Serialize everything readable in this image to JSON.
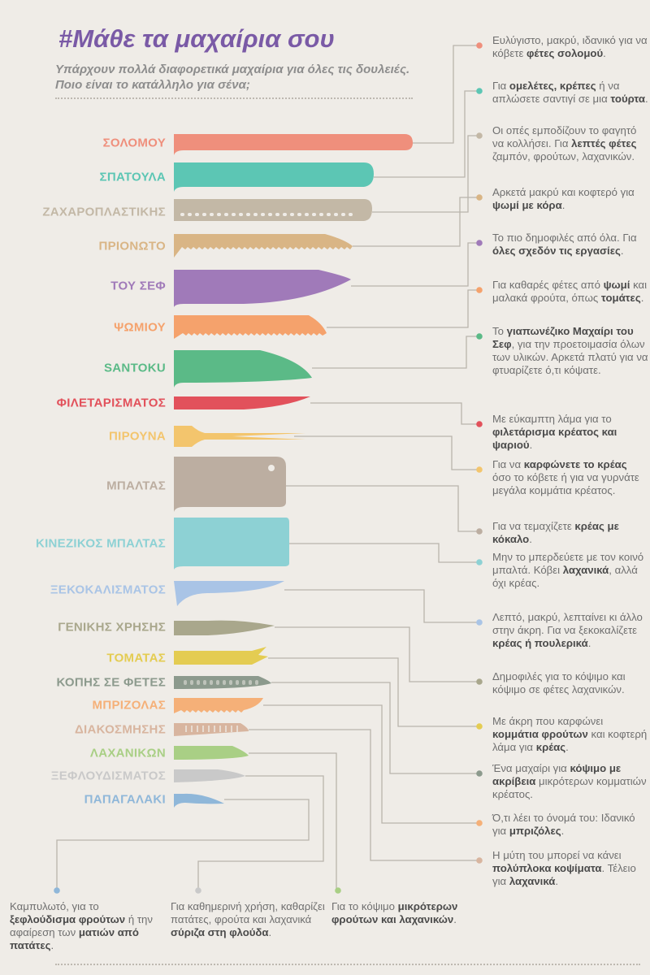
{
  "title": "#Μάθε τα μαχαίρια σου",
  "subtitle": "Υπάρχουν πολλά διαφορετικά μαχαίρια για όλες τις δουλειές. Ποιο είναι το κατάλληλο για σένα;",
  "knives": [
    {
      "name": "ΣΟΛΟΜΟΥ",
      "color": "#ef8f7c",
      "icon": "salmon-knife-icon"
    },
    {
      "name": "ΣΠΑΤΟΥΛΑ",
      "color": "#5cc6b4",
      "icon": "spatula-knife-icon"
    },
    {
      "name": "ΖΑΧΑΡΟΠΛΑΣΤΙΚΗΣ",
      "color": "#c3b8a6",
      "icon": "pastry-knife-icon"
    },
    {
      "name": "ΠΡΙΟΝΩΤΟ",
      "color": "#d9b585",
      "icon": "serrated-knife-icon"
    },
    {
      "name": "ΤΟΥ ΣΕΦ",
      "color": "#a07ab9",
      "icon": "chef-knife-icon"
    },
    {
      "name": "ΨΩΜΙΟΥ",
      "color": "#f5a26c",
      "icon": "bread-knife-icon"
    },
    {
      "name": "SANTOKU",
      "color": "#5bba87",
      "icon": "santoku-knife-icon"
    },
    {
      "name": "ΦΙΛΕΤΑΡΙΣΜΑΤΟΣ",
      "color": "#e2515b",
      "icon": "fillet-knife-icon"
    },
    {
      "name": "ΠΙΡΟΥΝΑ",
      "color": "#f3c56d",
      "icon": "carving-fork-icon"
    },
    {
      "name": "ΜΠΑΛΤΑΣ",
      "color": "#bcaea1",
      "icon": "cleaver-icon"
    },
    {
      "name": "ΚΙΝΕΖΙΚΟΣ ΜΠΑΛΤΑΣ",
      "color": "#8dd1d4",
      "icon": "chinese-cleaver-icon"
    },
    {
      "name": "ΞΕΚΟΚΑΛΙΣΜΑΤΟΣ",
      "color": "#a9c4e6",
      "icon": "boning-knife-icon"
    },
    {
      "name": "ΓΕΝΙΚΗΣ ΧΡΗΣΗΣ",
      "color": "#a9a78c",
      "icon": "utility-knife-icon"
    },
    {
      "name": "ΤΟΜΑΤΑΣ",
      "color": "#e4cc52",
      "icon": "tomato-knife-icon"
    },
    {
      "name": "ΚΟΠΗΣ ΣΕ ΦΕΤΕΣ",
      "color": "#8c9a8d",
      "icon": "slicing-knife-icon"
    },
    {
      "name": "ΜΠΡΙΖΟΛΑΣ",
      "color": "#f5b078",
      "icon": "steak-knife-icon"
    },
    {
      "name": "ΔΙΑΚΟΣΜΗΣΗΣ",
      "color": "#d8b59f",
      "icon": "decorating-knife-icon"
    },
    {
      "name": "ΛΑΧΑΝΙΚΩΝ",
      "color": "#a9cf85",
      "icon": "vegetable-knife-icon"
    },
    {
      "name": "ΞΕΦΛΟΥΔΙΣΜΑΤΟΣ",
      "color": "#c9c9c9",
      "icon": "peeling-knife-icon"
    },
    {
      "name": "ΠΑΠΑΓΑΛΑΚΙ",
      "color": "#8fb7d9",
      "icon": "bird-beak-knife-icon"
    }
  ],
  "descriptions": [
    {
      "parts": [
        "Ευλύγιστο, μακρύ, ιδανικό για να κόβετε ",
        "φέτες σολομού",
        "."
      ],
      "dot": "#ef8f7c"
    },
    {
      "parts": [
        "Για ",
        "ομελέτες, κρέπες",
        " ή να απλώσετε σαντιγί σε μια ",
        "τούρτα",
        "."
      ],
      "dot": "#5cc6b4"
    },
    {
      "parts": [
        "Οι οπές εμποδίζουν το φαγητό να κολλήσει. Για ",
        "λεπτές φέτες",
        " ζαμπόν, φρούτων, λαχανικών."
      ],
      "dot": "#c3b8a6"
    },
    {
      "parts": [
        "Αρκετά μακρύ και κοφτερό για ",
        "ψωμί με κόρα",
        "."
      ],
      "dot": "#d9b585"
    },
    {
      "parts": [
        "Το πιο δημοφιλές από όλα. Για ",
        "όλες σχεδόν τις εργασίες",
        "."
      ],
      "dot": "#a07ab9"
    },
    {
      "parts": [
        "Για καθαρές φέτες από ",
        "ψωμί",
        " και μαλακά φρούτα, όπως ",
        "τομάτες",
        "."
      ],
      "dot": "#f5a26c"
    },
    {
      "parts": [
        "Το ",
        "γιαπωνέζικο Μαχαίρι του Σεφ",
        ", για την προετοιμασία όλων των υλικών. Αρκετά πλατύ για να φτυαρίζετε ό,τι κόψατε."
      ],
      "dot": "#5bba87"
    },
    {
      "parts": [
        "Με εύκαμπτη λάμα για το ",
        "φιλετάρισμα κρέατος και ψαριού",
        "."
      ],
      "dot": "#e2515b"
    },
    {
      "parts": [
        "Για να ",
        "καρφώνετε το κρέας",
        " όσο το κόβετε ή για να γυρνάτε μεγάλα κομμάτια κρέατος."
      ],
      "dot": "#f3c56d"
    },
    {
      "parts": [
        "Για να τεμαχίζετε ",
        "κρέας με κόκαλο",
        "."
      ],
      "dot": "#bcaea1"
    },
    {
      "parts": [
        "Μην το μπερδεύετε με τον κοινό μπαλτά.  Κόβει ",
        "λαχανικά",
        ", αλλά όχι κρέας."
      ],
      "dot": "#8dd1d4"
    },
    {
      "parts": [
        "Λεπτό, μακρύ, λεπταίνει κι άλλο στην άκρη. Για να ξεκοκαλίζετε ",
        "κρέας ή πουλερικά",
        "."
      ],
      "dot": "#a9c4e6"
    },
    {
      "parts": [
        "Δημοφιλές για το κόψιμο και κόψιμο σε φέτες λαχανικών."
      ],
      "dot": "#a9a78c"
    },
    {
      "parts": [
        "Με άκρη που καρφώνει ",
        "κομμάτια φρούτων",
        " και κοφτερή λάμα για ",
        "κρέας",
        "."
      ],
      "dot": "#e4cc52"
    },
    {
      "parts": [
        "Ένα μαχαίρι για ",
        "κόψιμο με ακρίβεια",
        " μικρότερων κομματιών κρέατος."
      ],
      "dot": "#8c9a8d"
    },
    {
      "parts": [
        "Ό,τι λέει το όνομά του: Ιδανικό για ",
        "μπριζόλες",
        "."
      ],
      "dot": "#f5b078"
    },
    {
      "parts": [
        "Η μύτη του μπορεί να κάνει ",
        "πολύπλοκα κοψίματα",
        ". Τέλειο για ",
        "λαχανικά",
        "."
      ],
      "dot": "#d8b59f"
    }
  ],
  "bottom_descriptions": [
    {
      "parts": [
        "Καμπυλωτό, για το ",
        "ξεφλούδισμα φρούτων",
        " ή την αφαίρεση των ",
        "ματιών από πατάτες",
        "."
      ],
      "dot": "#8fb7d9"
    },
    {
      "parts": [
        "Για καθημερινή χρήση, καθαρίζει  πατάτες, φρούτα και λαχανικά ",
        "σύριζα στη φλούδα",
        "."
      ],
      "dot": "#c9c9c9"
    },
    {
      "parts": [
        "Για το κόψιμο ",
        "μικρότερων φρούτων και λαχανικών",
        "."
      ],
      "dot": "#a9cf85"
    }
  ]
}
